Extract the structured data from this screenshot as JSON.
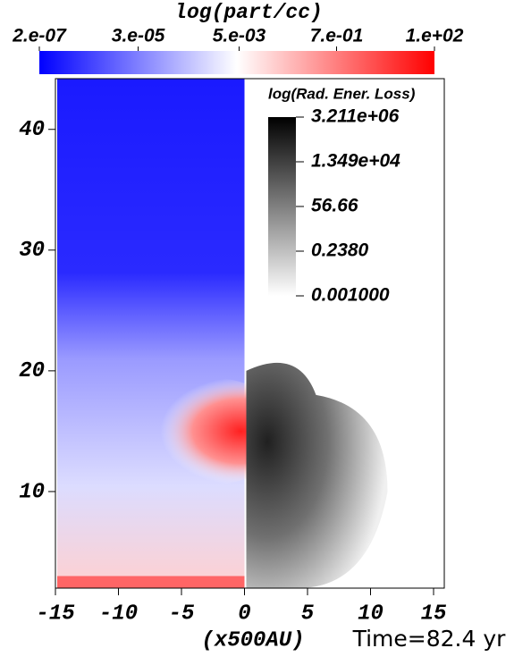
{
  "chart_data": {
    "type": "field",
    "colorbar": {
      "title": "log(part/cc)",
      "scale": "log",
      "lim": [
        2e-07,
        100
      ],
      "ticks": [
        {
          "value": 2e-07,
          "label": "2.e-07"
        },
        {
          "value": 3e-05,
          "label": "3.e-05"
        },
        {
          "value": 0.005,
          "label": "5.e-03"
        },
        {
          "value": 0.7,
          "label": "7.e-01"
        },
        {
          "value": 100,
          "label": "1.e+02"
        }
      ],
      "colors": [
        "#0000ff",
        "#ffffff",
        "#ff0000"
      ]
    },
    "colorbar2": {
      "title": "log(Rad. Ener. Loss)",
      "scale": "log",
      "lim": [
        0.001,
        3211000
      ],
      "ticks": [
        {
          "value": 3211000,
          "label": "3.211e+06"
        },
        {
          "value": 13490,
          "label": "1.349e+04"
        },
        56.66,
        {
          "value": 0.238,
          "label": "0.2380"
        },
        {
          "value": 0.001,
          "label": "0.001000"
        }
      ],
      "colors": [
        "#ffffff",
        "#000000"
      ]
    },
    "xlim": [
      -15,
      15.85
    ],
    "ylim": [
      2,
      44.2
    ],
    "xticks": [
      -15,
      -10,
      -5,
      0,
      5,
      10,
      15
    ],
    "yticks": [
      10,
      20,
      30,
      40
    ],
    "xlabel": "(x500AU)",
    "annotation": "Time=82.4 yr"
  }
}
